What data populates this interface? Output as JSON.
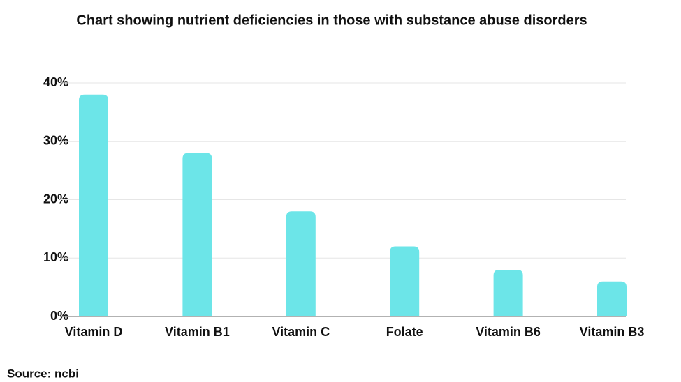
{
  "chart_data": {
    "type": "bar",
    "title": "Chart showing nutrient deficiencies in those with substance abuse disorders",
    "categories": [
      "Vitamin D",
      "Vitamin B1",
      "Vitamin C",
      "Folate",
      "Vitamin B6",
      "Vitamin B3"
    ],
    "values": [
      38,
      28,
      18,
      12,
      8,
      6
    ],
    "color": "#6ce5e8",
    "ylim": [
      0,
      40
    ],
    "yticks": [
      {
        "value": 0,
        "label": "0%"
      },
      {
        "value": 10,
        "label": "10%"
      },
      {
        "value": 20,
        "label": "20%"
      },
      {
        "value": 30,
        "label": "30%"
      },
      {
        "value": 40,
        "label": "40%"
      }
    ],
    "grid": true,
    "source": "Source: ncbi"
  }
}
